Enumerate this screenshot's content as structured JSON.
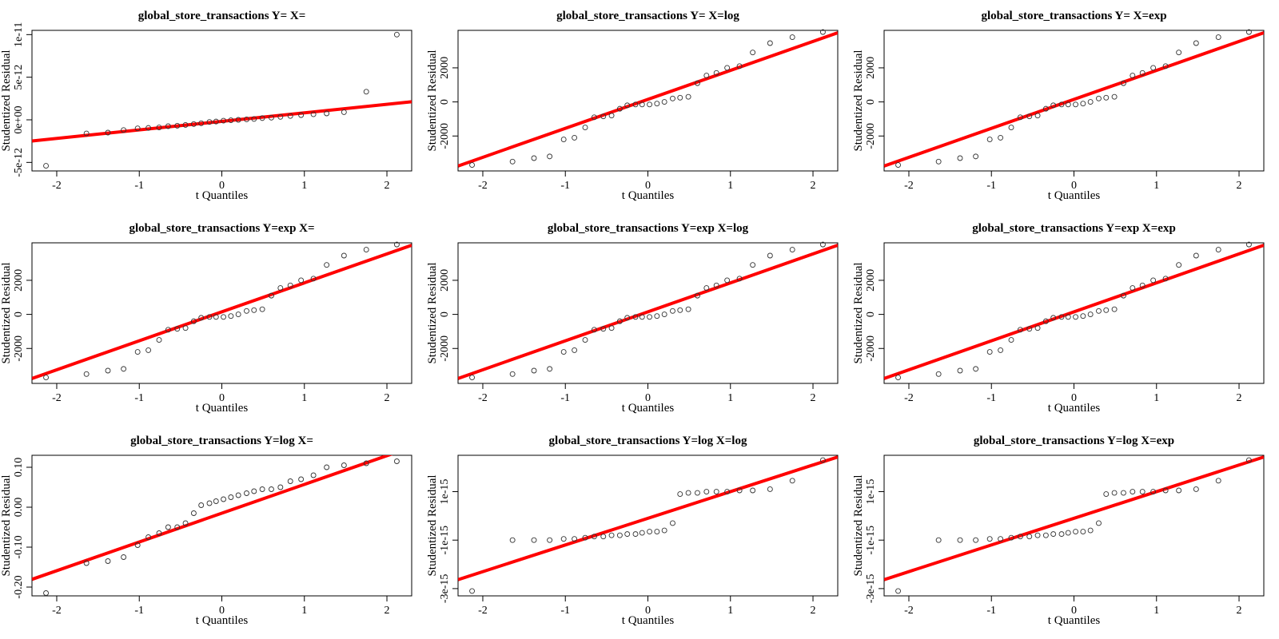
{
  "chart_data": [
    {
      "type": "scatter",
      "title": "global_store_transactions Y= X=",
      "xlabel": "t Quantiles",
      "ylabel": "Studentized Residual",
      "xlim": [
        -2.3,
        2.3
      ],
      "ylim": [
        -6e-12,
        1.05e-11
      ],
      "xticks": [
        -2,
        -1,
        0,
        1,
        2
      ],
      "xtick_labels": [
        "-2",
        "-1",
        "0",
        "1",
        "2"
      ],
      "yticks": [
        -5e-12,
        0,
        5e-12,
        1e-11
      ],
      "ytick_labels": [
        "-5e-12",
        "0e+00",
        "5e-12",
        "1e-11"
      ],
      "x": [
        -2.13,
        -1.64,
        -1.38,
        -1.19,
        -1.02,
        -0.89,
        -0.76,
        -0.65,
        -0.54,
        -0.44,
        -0.34,
        -0.25,
        -0.15,
        -0.07,
        0.02,
        0.11,
        0.2,
        0.3,
        0.39,
        0.49,
        0.6,
        0.71,
        0.83,
        0.96,
        1.11,
        1.27,
        1.48,
        1.75,
        2.12
      ],
      "y": [
        -5.4e-12,
        -1.6e-12,
        -1.5e-12,
        -1.2e-12,
        -1e-12,
        -9.5e-13,
        -9e-13,
        -7.5e-13,
        -7e-13,
        -6e-13,
        -5e-13,
        -4e-13,
        -2.5e-13,
        -2e-13,
        -1e-13,
        -5e-14,
        0.0,
        5e-14,
        1e-13,
        2e-13,
        2.5e-13,
        3.5e-13,
        4.5e-13,
        5.5e-13,
        6.5e-13,
        7.5e-13,
        9e-13,
        3.3e-12,
        1e-11
      ],
      "line": {
        "intercept": -1.8e-13,
        "slope": 1e-12
      },
      "colors": {
        "points": "#333333",
        "line": "#ff0000"
      }
    },
    {
      "type": "scatter",
      "title": "global_store_transactions Y= X=log",
      "xlabel": "t Quantiles",
      "ylabel": "Studentized Residual",
      "xlim": [
        -2.3,
        2.3
      ],
      "ylim": [
        -4050,
        4200
      ],
      "xticks": [
        -2,
        -1,
        0,
        1,
        2
      ],
      "xtick_labels": [
        "-2",
        "-1",
        "0",
        "1",
        "2"
      ],
      "yticks": [
        -2000,
        0,
        2000
      ],
      "ytick_labels": [
        "-2000",
        "0",
        "2000"
      ],
      "x": [
        -2.13,
        -1.64,
        -1.38,
        -1.19,
        -1.02,
        -0.89,
        -0.76,
        -0.65,
        -0.54,
        -0.44,
        -0.34,
        -0.25,
        -0.15,
        -0.07,
        0.02,
        0.11,
        0.2,
        0.3,
        0.39,
        0.49,
        0.6,
        0.71,
        0.83,
        0.96,
        1.11,
        1.27,
        1.48,
        1.75,
        2.12
      ],
      "y": [
        -3700,
        -3500,
        -3300,
        -3200,
        -2200,
        -2100,
        -1500,
        -900,
        -850,
        -800,
        -400,
        -200,
        -150,
        -150,
        -150,
        -100,
        0,
        200,
        250,
        300,
        1100,
        1550,
        1700,
        2000,
        2100,
        2900,
        3450,
        3800,
        4100
      ],
      "line": {
        "intercept": 150,
        "slope": 1700
      },
      "colors": {
        "points": "#333333",
        "line": "#ff0000"
      }
    },
    {
      "type": "scatter",
      "title": "global_store_transactions Y= X=exp",
      "xlabel": "t Quantiles",
      "ylabel": "Studentized Residual",
      "xlim": [
        -2.3,
        2.3
      ],
      "ylim": [
        -4050,
        4200
      ],
      "xticks": [
        -2,
        -1,
        0,
        1,
        2
      ],
      "xtick_labels": [
        "-2",
        "-1",
        "0",
        "1",
        "2"
      ],
      "yticks": [
        -2000,
        0,
        2000
      ],
      "ytick_labels": [
        "-2000",
        "0",
        "2000"
      ],
      "x": [
        -2.13,
        -1.64,
        -1.38,
        -1.19,
        -1.02,
        -0.89,
        -0.76,
        -0.65,
        -0.54,
        -0.44,
        -0.34,
        -0.25,
        -0.15,
        -0.07,
        0.02,
        0.11,
        0.2,
        0.3,
        0.39,
        0.49,
        0.6,
        0.71,
        0.83,
        0.96,
        1.11,
        1.27,
        1.48,
        1.75,
        2.12
      ],
      "y": [
        -3700,
        -3500,
        -3300,
        -3200,
        -2200,
        -2100,
        -1500,
        -900,
        -850,
        -800,
        -400,
        -200,
        -150,
        -150,
        -150,
        -100,
        0,
        200,
        250,
        300,
        1100,
        1550,
        1700,
        2000,
        2100,
        2900,
        3450,
        3800,
        4100
      ],
      "line": {
        "intercept": 150,
        "slope": 1700
      },
      "colors": {
        "points": "#333333",
        "line": "#ff0000"
      }
    },
    {
      "type": "scatter",
      "title": "global_store_transactions Y=exp X=",
      "xlabel": "t Quantiles",
      "ylabel": "Studentized Residual",
      "xlim": [
        -2.3,
        2.3
      ],
      "ylim": [
        -4050,
        4200
      ],
      "xticks": [
        -2,
        -1,
        0,
        1,
        2
      ],
      "xtick_labels": [
        "-2",
        "-1",
        "0",
        "1",
        "2"
      ],
      "yticks": [
        -2000,
        0,
        2000
      ],
      "ytick_labels": [
        "-2000",
        "0",
        "2000"
      ],
      "x": [
        -2.13,
        -1.64,
        -1.38,
        -1.19,
        -1.02,
        -0.89,
        -0.76,
        -0.65,
        -0.54,
        -0.44,
        -0.34,
        -0.25,
        -0.15,
        -0.07,
        0.02,
        0.11,
        0.2,
        0.3,
        0.39,
        0.49,
        0.6,
        0.71,
        0.83,
        0.96,
        1.11,
        1.27,
        1.48,
        1.75,
        2.12
      ],
      "y": [
        -3700,
        -3500,
        -3300,
        -3200,
        -2200,
        -2100,
        -1500,
        -900,
        -850,
        -800,
        -400,
        -200,
        -150,
        -150,
        -150,
        -100,
        0,
        200,
        250,
        300,
        1100,
        1550,
        1700,
        2000,
        2100,
        2900,
        3450,
        3800,
        4100
      ],
      "line": {
        "intercept": 150,
        "slope": 1700
      },
      "colors": {
        "points": "#333333",
        "line": "#ff0000"
      }
    },
    {
      "type": "scatter",
      "title": "global_store_transactions Y=exp X=log",
      "xlabel": "t Quantiles",
      "ylabel": "Studentized Residual",
      "xlim": [
        -2.3,
        2.3
      ],
      "ylim": [
        -4050,
        4200
      ],
      "xticks": [
        -2,
        -1,
        0,
        1,
        2
      ],
      "xtick_labels": [
        "-2",
        "-1",
        "0",
        "1",
        "2"
      ],
      "yticks": [
        -2000,
        0,
        2000
      ],
      "ytick_labels": [
        "-2000",
        "0",
        "2000"
      ],
      "x": [
        -2.13,
        -1.64,
        -1.38,
        -1.19,
        -1.02,
        -0.89,
        -0.76,
        -0.65,
        -0.54,
        -0.44,
        -0.34,
        -0.25,
        -0.15,
        -0.07,
        0.02,
        0.11,
        0.2,
        0.3,
        0.39,
        0.49,
        0.6,
        0.71,
        0.83,
        0.96,
        1.11,
        1.27,
        1.48,
        1.75,
        2.12
      ],
      "y": [
        -3700,
        -3500,
        -3300,
        -3200,
        -2200,
        -2100,
        -1500,
        -900,
        -850,
        -800,
        -400,
        -200,
        -150,
        -150,
        -150,
        -100,
        0,
        200,
        250,
        300,
        1100,
        1550,
        1700,
        2000,
        2100,
        2900,
        3450,
        3800,
        4100
      ],
      "line": {
        "intercept": 150,
        "slope": 1700
      },
      "colors": {
        "points": "#333333",
        "line": "#ff0000"
      }
    },
    {
      "type": "scatter",
      "title": "global_store_transactions Y=exp X=exp",
      "xlabel": "t Quantiles",
      "ylabel": "Studentized Residual",
      "xlim": [
        -2.3,
        2.3
      ],
      "ylim": [
        -4050,
        4200
      ],
      "xticks": [
        -2,
        -1,
        0,
        1,
        2
      ],
      "xtick_labels": [
        "-2",
        "-1",
        "0",
        "1",
        "2"
      ],
      "yticks": [
        -2000,
        0,
        2000
      ],
      "ytick_labels": [
        "-2000",
        "0",
        "2000"
      ],
      "x": [
        -2.13,
        -1.64,
        -1.38,
        -1.19,
        -1.02,
        -0.89,
        -0.76,
        -0.65,
        -0.54,
        -0.44,
        -0.34,
        -0.25,
        -0.15,
        -0.07,
        0.02,
        0.11,
        0.2,
        0.3,
        0.39,
        0.49,
        0.6,
        0.71,
        0.83,
        0.96,
        1.11,
        1.27,
        1.48,
        1.75,
        2.12
      ],
      "y": [
        -3700,
        -3500,
        -3300,
        -3200,
        -2200,
        -2100,
        -1500,
        -900,
        -850,
        -800,
        -400,
        -200,
        -150,
        -150,
        -150,
        -100,
        0,
        200,
        250,
        300,
        1100,
        1550,
        1700,
        2000,
        2100,
        2900,
        3450,
        3800,
        4100
      ],
      "line": {
        "intercept": 150,
        "slope": 1700
      },
      "colors": {
        "points": "#333333",
        "line": "#ff0000"
      }
    },
    {
      "type": "scatter",
      "title": "global_store_transactions Y=log X=",
      "xlabel": "t Quantiles",
      "ylabel": "Studentized Residual",
      "xlim": [
        -2.3,
        2.3
      ],
      "ylim": [
        -0.222,
        0.13
      ],
      "xticks": [
        -2,
        -1,
        0,
        1,
        2
      ],
      "xtick_labels": [
        "-2",
        "-1",
        "0",
        "1",
        "2"
      ],
      "yticks": [
        -0.2,
        -0.1,
        0.0,
        0.1
      ],
      "ytick_labels": [
        "-0.20",
        "-0.10",
        "0.00",
        "0.10"
      ],
      "x": [
        -2.13,
        -1.64,
        -1.38,
        -1.19,
        -1.02,
        -0.89,
        -0.76,
        -0.65,
        -0.54,
        -0.44,
        -0.34,
        -0.25,
        -0.15,
        -0.07,
        0.02,
        0.11,
        0.2,
        0.3,
        0.39,
        0.49,
        0.6,
        0.71,
        0.83,
        0.96,
        1.11,
        1.27,
        1.48,
        1.75,
        2.12
      ],
      "y": [
        -0.215,
        -0.14,
        -0.135,
        -0.125,
        -0.095,
        -0.075,
        -0.065,
        -0.05,
        -0.05,
        -0.04,
        -0.015,
        0.005,
        0.01,
        0.015,
        0.02,
        0.025,
        0.03,
        0.035,
        0.04,
        0.045,
        0.045,
        0.05,
        0.065,
        0.07,
        0.08,
        0.1,
        0.105,
        0.11,
        0.115
      ],
      "line": {
        "intercept": -0.015,
        "slope": 0.072
      },
      "colors": {
        "points": "#333333",
        "line": "#ff0000"
      }
    },
    {
      "type": "scatter",
      "title": "global_store_transactions Y=log X=log",
      "xlabel": "t Quantiles",
      "ylabel": "Studentized Residual",
      "xlim": [
        -2.3,
        2.3
      ],
      "ylim": [
        -3.3e-15,
        2.5e-15
      ],
      "xticks": [
        -2,
        -1,
        0,
        1,
        2
      ],
      "xtick_labels": [
        "-2",
        "-1",
        "0",
        "1",
        "2"
      ],
      "yticks": [
        -3e-15,
        -1e-15,
        1e-15
      ],
      "ytick_labels": [
        "-3e-15",
        "-1e-15",
        "1e-15"
      ],
      "x": [
        -2.13,
        -1.64,
        -1.38,
        -1.19,
        -1.02,
        -0.89,
        -0.76,
        -0.65,
        -0.54,
        -0.44,
        -0.34,
        -0.25,
        -0.15,
        -0.07,
        0.02,
        0.11,
        0.2,
        0.3,
        0.39,
        0.49,
        0.6,
        0.71,
        0.83,
        0.96,
        1.11,
        1.27,
        1.48,
        1.75,
        2.12
      ],
      "y": [
        -3.1e-15,
        -1e-15,
        -1e-15,
        -1e-15,
        -9.5e-16,
        -9.5e-16,
        -9e-16,
        -8.5e-16,
        -8.5e-16,
        -8e-16,
        -8e-16,
        -7.5e-16,
        -7.5e-16,
        -7e-16,
        -6.5e-16,
        -6.5e-16,
        -6e-16,
        -3e-16,
        9e-16,
        9.5e-16,
        9.5e-16,
        1e-15,
        1e-15,
        1e-15,
        1.05e-15,
        1.05e-15,
        1.1e-15,
        1.45e-15,
        2.3e-15
      ],
      "line": {
        "intercept": -1e-16,
        "slope": 1.1e-15
      },
      "colors": {
        "points": "#333333",
        "line": "#ff0000"
      }
    },
    {
      "type": "scatter",
      "title": "global_store_transactions Y=log X=exp",
      "xlabel": "t Quantiles",
      "ylabel": "Studentized Residual",
      "xlim": [
        -2.3,
        2.3
      ],
      "ylim": [
        -3.3e-15,
        2.5e-15
      ],
      "xticks": [
        -2,
        -1,
        0,
        1,
        2
      ],
      "xtick_labels": [
        "-2",
        "-1",
        "0",
        "1",
        "2"
      ],
      "yticks": [
        -3e-15,
        -1e-15,
        1e-15
      ],
      "ytick_labels": [
        "-3e-15",
        "-1e-15",
        "1e-15"
      ],
      "x": [
        -2.13,
        -1.64,
        -1.38,
        -1.19,
        -1.02,
        -0.89,
        -0.76,
        -0.65,
        -0.54,
        -0.44,
        -0.34,
        -0.25,
        -0.15,
        -0.07,
        0.02,
        0.11,
        0.2,
        0.3,
        0.39,
        0.49,
        0.6,
        0.71,
        0.83,
        0.96,
        1.11,
        1.27,
        1.48,
        1.75,
        2.12
      ],
      "y": [
        -3.1e-15,
        -1e-15,
        -1e-15,
        -1e-15,
        -9.5e-16,
        -9.5e-16,
        -9e-16,
        -8.5e-16,
        -8.5e-16,
        -8e-16,
        -8e-16,
        -7.5e-16,
        -7.5e-16,
        -7e-16,
        -6.5e-16,
        -6.5e-16,
        -6e-16,
        -3e-16,
        9e-16,
        9.5e-16,
        9.5e-16,
        1e-15,
        1e-15,
        1e-15,
        1.05e-15,
        1.05e-15,
        1.1e-15,
        1.45e-15,
        2.3e-15
      ],
      "line": {
        "intercept": -1e-16,
        "slope": 1.1e-15
      },
      "colors": {
        "points": "#333333",
        "line": "#ff0000"
      }
    }
  ]
}
